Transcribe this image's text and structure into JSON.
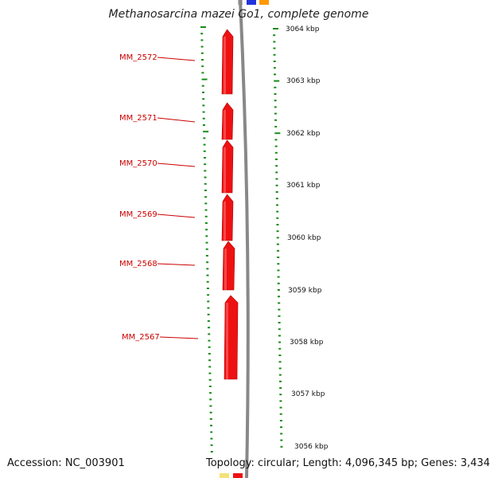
{
  "title": "Methanosarcina mazei Go1, complete genome",
  "footer": {
    "accession": "Accession: NC_003901",
    "summary": "Topology: circular; Length: 4,096,345 bp; Genes: 3,434"
  },
  "colors": {
    "gene": "#ee1111",
    "gene_label": "#cc0000",
    "tick": "#1a8a1a",
    "backbone": "#888888",
    "top_feature_blue": "#2233dd",
    "top_feature_orange": "#ff9900",
    "bottom_feature_yellow": "#f2e27a",
    "bottom_feature_red": "#ee1111"
  },
  "scale": {
    "labels": [
      "3064 kbp",
      "3063 kbp",
      "3062 kbp",
      "3061 kbp",
      "3060 kbp",
      "3059 kbp",
      "3058 kbp",
      "3057 kbp",
      "3056 kbp"
    ]
  },
  "genes": [
    "MM_2572",
    "MM_2571",
    "MM_2570",
    "MM_2569",
    "MM_2568",
    "MM_2567"
  ]
}
